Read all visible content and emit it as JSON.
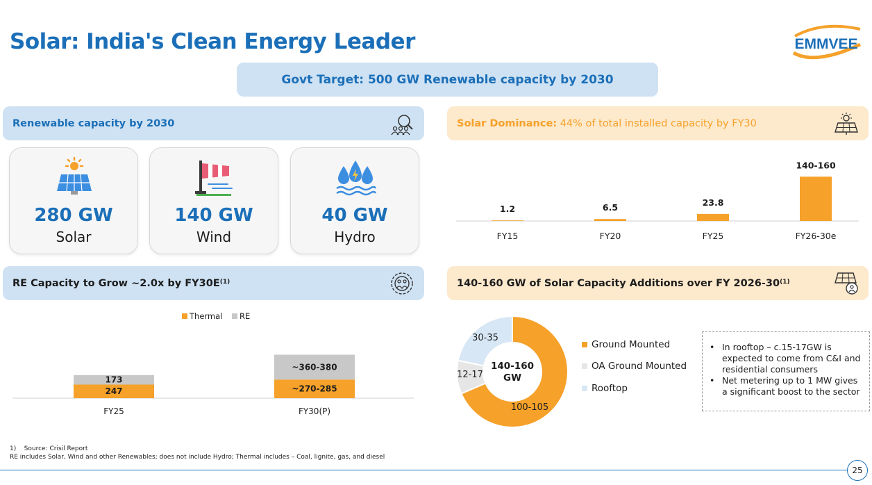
{
  "title": "Solar: India's Clean Energy Leader",
  "logo_text": "EMMVEE",
  "target_banner": "Govt Target: 500 GW Renewable capacity by 2030",
  "renewable_header": "Renewable capacity by 2030",
  "capacity_cards": [
    {
      "value": "280 GW",
      "label": "Solar",
      "icon": "solar-panel-icon"
    },
    {
      "value": "140 GW",
      "label": "Wind",
      "icon": "wind-sock-icon"
    },
    {
      "value": "40 GW",
      "label": "Hydro",
      "icon": "water-drops-icon"
    }
  ],
  "solar_dominance": {
    "bold": "Solar Dominance:",
    "rest": " 44% of total installed capacity by FY30"
  },
  "re_growth_header": "RE Capacity to Grow ~2.0x by FY30E",
  "re_growth_sup": "(1)",
  "additions_header": "140-160 GW of Solar Capacity Additions over FY 2026-30",
  "additions_sup": "(1)",
  "chart_data": [
    {
      "type": "bar",
      "title": "Solar installed capacity",
      "categories": [
        "FY15",
        "FY20",
        "FY25",
        "FY26-30e"
      ],
      "values": [
        1.2,
        6.5,
        23.8,
        150
      ],
      "data_labels": [
        "1.2",
        "6.5",
        "23.8",
        "140-160"
      ],
      "ylim": [
        0,
        160
      ]
    },
    {
      "type": "bar",
      "stacked": true,
      "title": "RE Capacity",
      "categories": [
        "FY25",
        "FY30(P)"
      ],
      "series": [
        {
          "name": "Thermal",
          "values": [
            247,
            277.5
          ],
          "labels": [
            "247",
            "~270-285"
          ],
          "color": "#f5a12a"
        },
        {
          "name": "RE",
          "values": [
            173,
            370
          ],
          "labels": [
            "173",
            "~360-380"
          ],
          "color": "#c8c8c8"
        }
      ],
      "legend": [
        "Thermal",
        "RE"
      ],
      "legend_position": "top-center",
      "ylim": [
        0,
        700
      ]
    },
    {
      "type": "pie",
      "donut": true,
      "title": "140-160 GW",
      "categories": [
        "Ground Mounted",
        "OA Ground Mounted",
        "Rooftop"
      ],
      "values": [
        102.5,
        14.5,
        32.5
      ],
      "data_labels": [
        "100-105",
        "12-17",
        "30-35"
      ],
      "center_label": [
        "140-160",
        "GW"
      ],
      "colors": [
        "#f5a12a",
        "#e6e6e6",
        "#d8e7f5"
      ]
    }
  ],
  "notes": [
    "In rooftop – c.15-17GW is expected to come from C&I and residential consumers",
    "Net metering up to 1 MW gives a significant boost to the sector"
  ],
  "footnotes": [
    "1)    Source: Crisil Report",
    "RE includes Solar, Wind and other Renewables; does not include Hydro; Thermal includes – Coal, lignite, gas, and diesel"
  ],
  "page_number": "25",
  "colors": {
    "brand_blue": "#1b6fb8",
    "accent_orange": "#f5a12a",
    "header_blue_bg": "#cfe2f3",
    "header_orange_bg": "#fde9cc"
  }
}
